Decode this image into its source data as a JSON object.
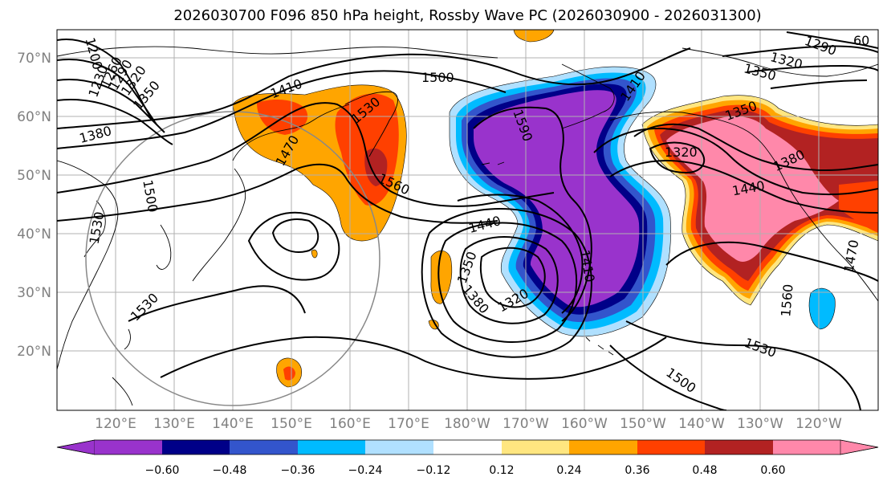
{
  "title": "2026030700 F096 850 hPa height, Rossby Wave PC (2026030900 - 2026031300)",
  "lat_labels": [
    "70°N",
    "60°N",
    "50°N",
    "40°N",
    "30°N",
    "20°N"
  ],
  "lon_labels": [
    "120°E",
    "130°E",
    "140°E",
    "150°E",
    "160°E",
    "170°E",
    "180°W",
    "170°W",
    "160°W",
    "150°W",
    "140°W",
    "130°W",
    "120°W"
  ],
  "colorbar": {
    "ticks": [
      "−0.60",
      "−0.48",
      "−0.36",
      "−0.24",
      "−0.12",
      "0.12",
      "0.24",
      "0.36",
      "0.48",
      "0.60"
    ],
    "colors": [
      "#9933cc",
      "#000088",
      "#3355cc",
      "#00bbff",
      "#b0e0ff",
      "#ffffff",
      "#ffe680",
      "#ffa500",
      "#ff4000",
      "#b22222",
      "#ff88aa"
    ]
  },
  "shading_colors": {
    "neg_1": "#9933cc",
    "neg_2": "#000088",
    "neg_3": "#3355cc",
    "neg_4": "#00bbff",
    "neg_5": "#b0e0ff",
    "pos_1": "#ffe680",
    "pos_2": "#ffa500",
    "pos_3": "#ff4000",
    "pos_4": "#b22222",
    "pos_5": "#ff88aa"
  },
  "contour_labels": [
    "1200",
    "1230",
    "1260",
    "1290",
    "1320",
    "1350",
    "1380",
    "1410",
    "1470",
    "1530",
    "1500",
    "1530",
    "1530",
    "1500",
    "1590",
    "1560",
    "1440",
    "1350",
    "1380",
    "1320",
    "1410",
    "1410",
    "1350",
    "1320",
    "1380",
    "1440",
    "1470",
    "1560",
    "1530",
    "1500",
    "1290",
    "1320",
    "1350",
    "60"
  ]
}
